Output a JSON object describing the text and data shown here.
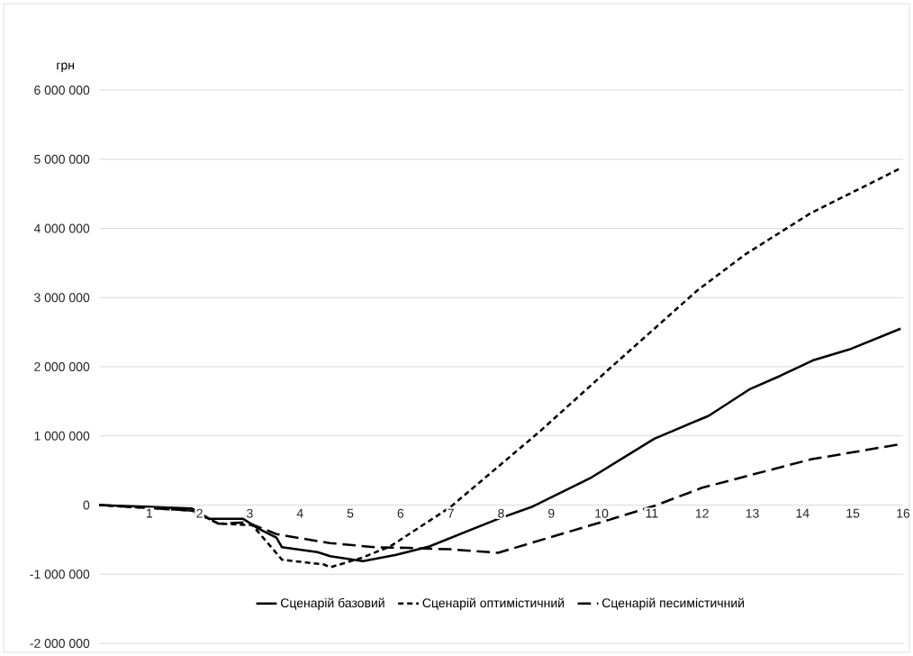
{
  "chart_data": {
    "type": "line",
    "ylabel": "грн",
    "xlim": [
      0,
      16
    ],
    "xticks": [
      1,
      2,
      3,
      4,
      5,
      6,
      7,
      8,
      9,
      10,
      11,
      12,
      13,
      14,
      15,
      16
    ],
    "ylim": [
      -2000000,
      6000000
    ],
    "yticks": [
      {
        "value": -2000000,
        "label": "-2 000 000"
      },
      {
        "value": -1000000,
        "label": "-1 000 000"
      },
      {
        "value": 0,
        "label": "0"
      },
      {
        "value": 1000000,
        "label": "1 000 000"
      },
      {
        "value": 2000000,
        "label": "2 000 000"
      },
      {
        "value": 3000000,
        "label": "3 000 000"
      },
      {
        "value": 4000000,
        "label": "4 000 000"
      },
      {
        "value": 5000000,
        "label": "5 000 000"
      },
      {
        "value": 6000000,
        "label": "6 000 000"
      }
    ],
    "grid": "y",
    "legend": "bottom",
    "series": [
      {
        "name": "Сценарій базовий",
        "color": "#000000",
        "line_style": "solid",
        "x": [
          0,
          1.85,
          2.2,
          2.87,
          3.17,
          3.53,
          3.64,
          4.35,
          4.6,
          5.25,
          5.91,
          6.57,
          7.94,
          8.6,
          9.8,
          11.05,
          12.13,
          12.96,
          13.56,
          14.2,
          14.93,
          15.95
        ],
        "values": [
          0,
          -50000,
          -200000,
          -200000,
          -340000,
          -470000,
          -610000,
          -680000,
          -740000,
          -810000,
          -720000,
          -600000,
          -200000,
          -30000,
          400000,
          960000,
          1290000,
          1680000,
          1870000,
          2090000,
          2250000,
          2550000
        ]
      },
      {
        "name": "Сценарій оптимістичний",
        "color": "#000000",
        "line_style": "dotted",
        "x": [
          0,
          1.85,
          2.38,
          3.05,
          3.64,
          4.48,
          4.6,
          5.2,
          5.79,
          6.99,
          8.78,
          10.2,
          11.9,
          12.85,
          14.16,
          15.95
        ],
        "values": [
          0,
          -80000,
          -270000,
          -290000,
          -790000,
          -860000,
          -900000,
          -770000,
          -600000,
          -30000,
          1070000,
          2000000,
          3100000,
          3620000,
          4220000,
          4870000
        ]
      },
      {
        "name": "Сценарій песимістичний",
        "color": "#000000",
        "line_style": "dashed",
        "x": [
          0,
          1.85,
          2.38,
          2.95,
          3.53,
          4.0,
          4.6,
          5.5,
          6.15,
          6.99,
          7.94,
          9.98,
          11.06,
          12.0,
          14.16,
          15.95
        ],
        "values": [
          0,
          -80000,
          -270000,
          -250000,
          -420000,
          -480000,
          -550000,
          -610000,
          -620000,
          -640000,
          -690000,
          -250000,
          -10000,
          250000,
          660000,
          880000
        ]
      }
    ]
  }
}
